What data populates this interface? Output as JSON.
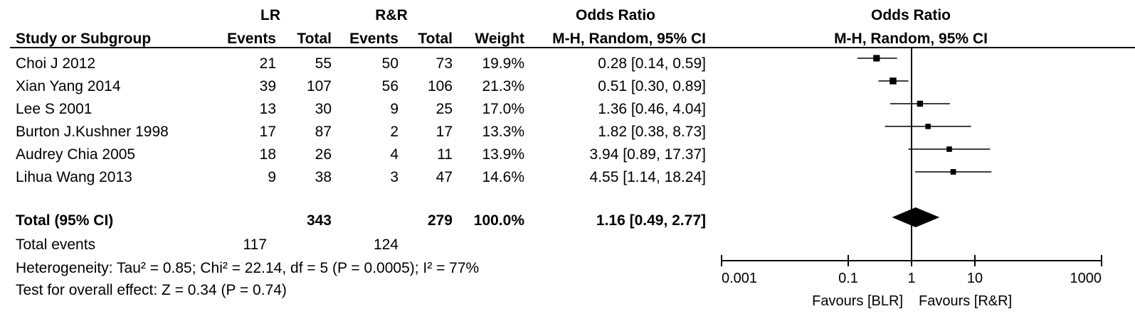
{
  "header": {
    "group1": "LR",
    "group2": "R&R",
    "study_col": "Study or Subgroup",
    "events": "Events",
    "total": "Total",
    "weight": "Weight",
    "or_title": "Odds Ratio",
    "or_method": "M-H, Random, 95% CI",
    "plot_title": "Odds Ratio",
    "plot_method": "M-H, Random, 95% CI"
  },
  "rows": [
    {
      "study": "Choi J 2012",
      "e1": "21",
      "t1": "55",
      "e2": "50",
      "t2": "73",
      "weight": "19.9%",
      "ci": "0.28 [0.14, 0.59]"
    },
    {
      "study": "Xian Yang  2014",
      "e1": "39",
      "t1": "107",
      "e2": "56",
      "t2": "106",
      "weight": "21.3%",
      "ci": "0.51 [0.30, 0.89]"
    },
    {
      "study": "Lee S 2001",
      "e1": "13",
      "t1": "30",
      "e2": "9",
      "t2": "25",
      "weight": "17.0%",
      "ci": "1.36 [0.46, 4.04]"
    },
    {
      "study": "Burton J.Kushner 1998",
      "e1": "17",
      "t1": "87",
      "e2": "2",
      "t2": "17",
      "weight": "13.3%",
      "ci": "1.82 [0.38, 8.73]"
    },
    {
      "study": "Audrey Chia 2005",
      "e1": "18",
      "t1": "26",
      "e2": "4",
      "t2": "11",
      "weight": "13.9%",
      "ci": "3.94 [0.89, 17.37]"
    },
    {
      "study": "Lihua Wang 2013",
      "e1": "9",
      "t1": "38",
      "e2": "3",
      "t2": "47",
      "weight": "14.6%",
      "ci": "4.55 [1.14, 18.24]"
    }
  ],
  "total": {
    "label": "Total (95% CI)",
    "t1": "343",
    "t2": "279",
    "weight": "100.0%",
    "ci": "1.16 [0.49, 2.77]"
  },
  "total_events": {
    "label": "Total events",
    "e1": "117",
    "e2": "124"
  },
  "heterogeneity": "Heterogeneity: Tau² = 0.85; Chi² = 22.14, df = 5 (P = 0.0005); I² = 77%",
  "overall_effect": "Test for overall effect: Z = 0.34 (P = 0.74)",
  "chart_data": {
    "type": "scatter",
    "subtype": "forest-plot",
    "title": "Odds Ratio",
    "subtitle": "M-H, Random, 95% CI",
    "x_scale": "log",
    "xlim": [
      0.001,
      1000
    ],
    "x_ticks": [
      0.001,
      0.1,
      1,
      10,
      1000
    ],
    "x_tick_labels": [
      "0.001",
      "0.1",
      "1",
      "10",
      "1000"
    ],
    "favours_left": "Favours [BLR]",
    "favours_right": "Favours [R&R]",
    "studies": [
      {
        "study": "Choi J 2012",
        "or": 0.28,
        "lo": 0.14,
        "hi": 0.59,
        "weight": 19.9
      },
      {
        "study": "Xian Yang  2014",
        "or": 0.51,
        "lo": 0.3,
        "hi": 0.89,
        "weight": 21.3
      },
      {
        "study": "Lee S 2001",
        "or": 1.36,
        "lo": 0.46,
        "hi": 4.04,
        "weight": 17.0
      },
      {
        "study": "Burton J.Kushner 1998",
        "or": 1.82,
        "lo": 0.38,
        "hi": 8.73,
        "weight": 13.3
      },
      {
        "study": "Audrey Chia 2005",
        "or": 3.94,
        "lo": 0.89,
        "hi": 17.37,
        "weight": 13.9
      },
      {
        "study": "Lihua Wang 2013",
        "or": 4.55,
        "lo": 1.14,
        "hi": 18.24,
        "weight": 14.6
      }
    ],
    "pooled": {
      "or": 1.16,
      "lo": 0.49,
      "hi": 2.77
    },
    "colors": {
      "ink": "#000000"
    }
  }
}
